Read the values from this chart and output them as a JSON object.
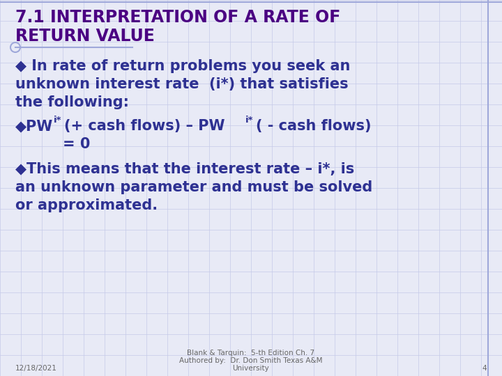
{
  "title_line1": "7.1 INTERPRETATION OF A RATE OF",
  "title_line2": "RETURN VALUE",
  "title_color": "#4B0082",
  "bullet1_line1": "◆ In rate of return problems you seek an",
  "bullet1_line2": "unknown interest rate  (i*) that satisfies",
  "bullet1_line3": "the following:",
  "bullet3_line1": "◆This means that the interest rate – i*, is",
  "bullet3_line2": "an unknown parameter and must be solved",
  "bullet3_line3": "or approximated.",
  "footer_line1": "Blank & Tarquin:  5-th Edition Ch. 7",
  "footer_line2": "Authored by:  Dr. Don Smith Texas A&M",
  "footer_line3": "University",
  "footer_date": "12/18/2021",
  "footer_page": "4",
  "text_color": "#2E3192",
  "title_color2": "#4B0082",
  "bg_color": "#E8EAF6",
  "grid_color": "#C5CAE9",
  "footer_color": "#666666",
  "border_color": "#9FA8DA"
}
